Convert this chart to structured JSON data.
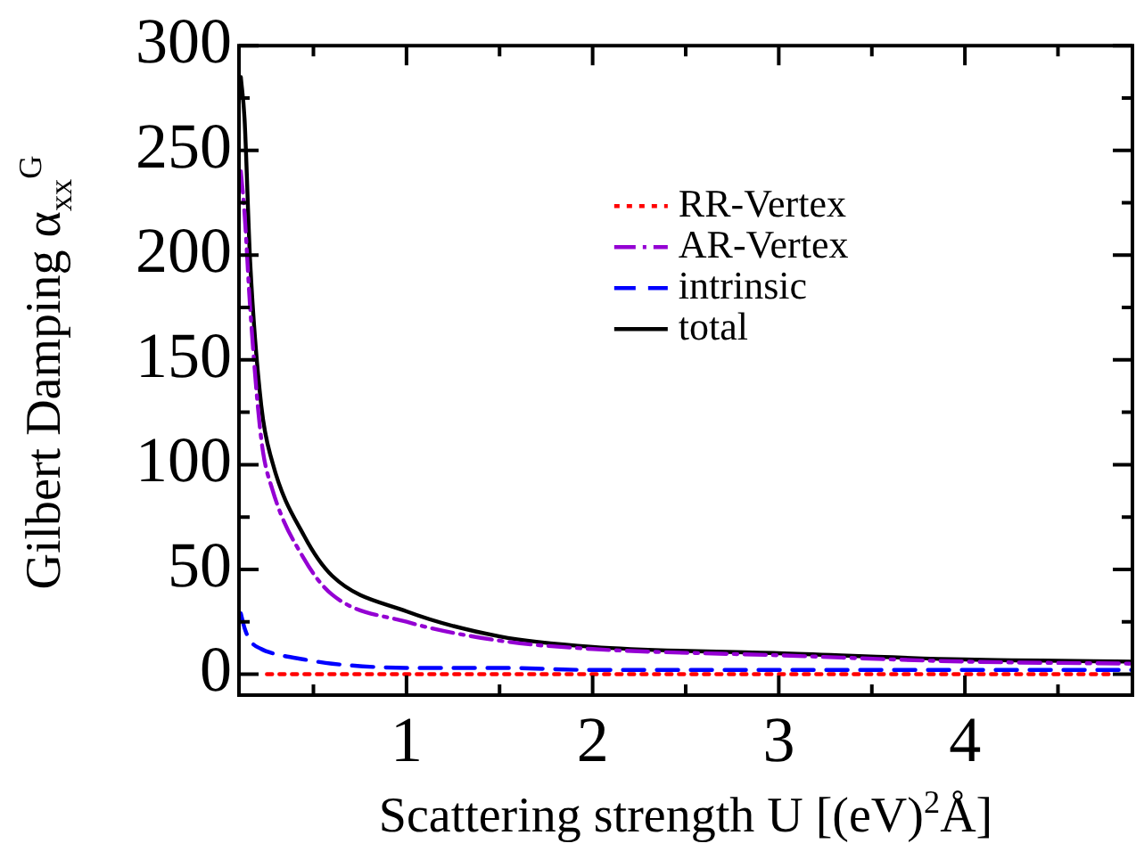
{
  "chart_data": {
    "type": "line",
    "xlabel": "Scattering strength U [(eV)$^{2}$Å]",
    "ylabel": "Gilbert Damping α$_{xx}$$^{G}$",
    "x": [
      0.11,
      0.13,
      0.16,
      0.22,
      0.28,
      0.45,
      0.6,
      1,
      1.5,
      2,
      3,
      4,
      4.9
    ],
    "series": [
      {
        "name": "RR-Vertex",
        "color": "#ff0000",
        "line_style": "dotted",
        "x": [
          0.25,
          4.8
        ],
        "values": [
          0,
          0
        ]
      },
      {
        "name": "AR-Vertex",
        "color": "#9400d3",
        "line_style": "dashdot",
        "values": [
          240,
          220,
          175,
          112,
          88,
          55,
          38,
          25,
          16,
          12,
          9,
          6,
          5
        ]
      },
      {
        "name": "intrinsic",
        "color": "#0000ff",
        "line_style": "dashed",
        "values": [
          29,
          22,
          16,
          12,
          10,
          7,
          5,
          3,
          3,
          2,
          2,
          2,
          2
        ]
      },
      {
        "name": "total",
        "color": "#000000",
        "line_style": "solid",
        "values": [
          285,
          265,
          197,
          128,
          101,
          66,
          47,
          30,
          18,
          13,
          10,
          7,
          6
        ]
      }
    ],
    "xlim": [
      0.1,
      4.9
    ],
    "xticks": [
      {
        "value": 0.5,
        "label": null
      },
      1,
      {
        "value": 1.5,
        "label": null
      },
      2,
      {
        "value": 2.5,
        "label": null
      },
      3,
      {
        "value": 3.5,
        "label": null
      },
      4,
      {
        "value": 4.5,
        "label": null
      }
    ],
    "ylim": [
      -10,
      300
    ],
    "yticks": [
      0,
      {
        "value": 25,
        "label": null
      },
      50,
      {
        "value": 75,
        "label": null
      },
      100,
      {
        "value": 125,
        "label": null
      },
      150,
      {
        "value": 175,
        "label": null
      },
      200,
      {
        "value": 225,
        "label": null
      },
      250,
      {
        "value": 275,
        "label": null
      },
      300
    ],
    "grid": false,
    "legend": "top right",
    "marker": "none"
  }
}
